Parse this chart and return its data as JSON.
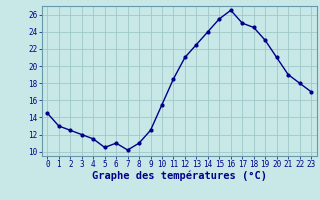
{
  "hours": [
    0,
    1,
    2,
    3,
    4,
    5,
    6,
    7,
    8,
    9,
    10,
    11,
    12,
    13,
    14,
    15,
    16,
    17,
    18,
    19,
    20,
    21,
    22,
    23
  ],
  "temps": [
    14.5,
    13,
    12.5,
    12,
    11.5,
    10.5,
    11,
    10.2,
    11,
    12.5,
    15.5,
    18.5,
    21,
    22.5,
    24,
    25.5,
    26.5,
    25,
    24.5,
    23,
    21,
    19,
    18,
    17
  ],
  "xlabel": "Graphe des températures (°C)",
  "ylim": [
    9.5,
    27
  ],
  "yticks": [
    10,
    12,
    14,
    16,
    18,
    20,
    22,
    24,
    26
  ],
  "line_color": "#00008B",
  "marker": ".",
  "bg_color": "#C8E8E8",
  "grid_color": "#A0C8C8",
  "axis_label_color": "#00008B",
  "tick_label_color": "#00008B",
  "spine_color": "#6699AA",
  "tick_fontsize": 5.5,
  "xlabel_fontsize": 7.5
}
